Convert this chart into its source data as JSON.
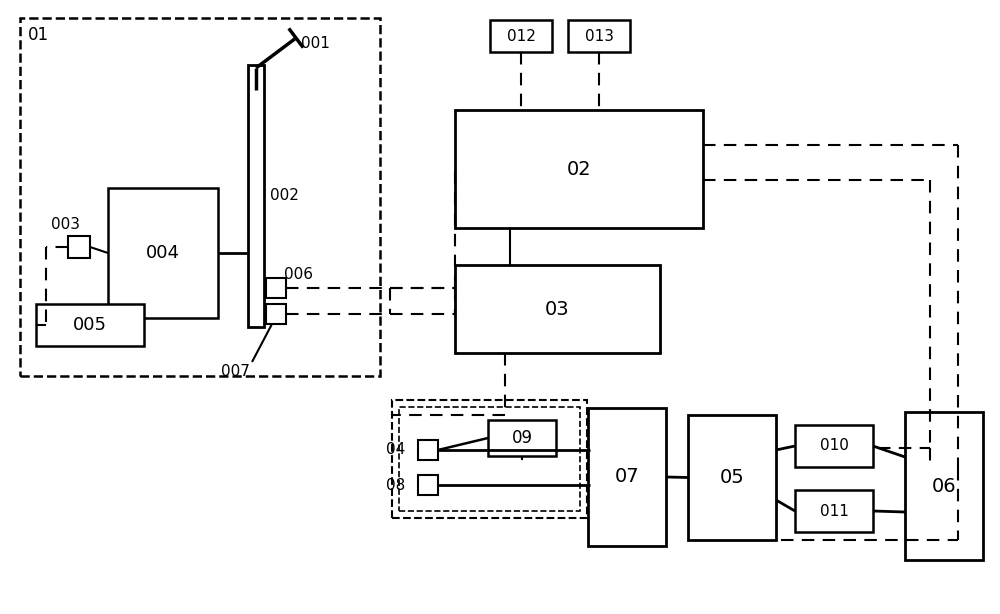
{
  "fig_width": 10.0,
  "fig_height": 6.14,
  "bg_color": "#ffffff",
  "labels": {
    "01": "01",
    "02": "02",
    "03": "03",
    "04": "04",
    "05": "05",
    "06": "06",
    "07": "07",
    "08": "08",
    "001": "001",
    "002": "002",
    "003": "003",
    "004": "004",
    "005": "005",
    "006": "006",
    "007": "007",
    "009": "09",
    "010": "010",
    "011": "011",
    "012": "012",
    "013": "013"
  }
}
